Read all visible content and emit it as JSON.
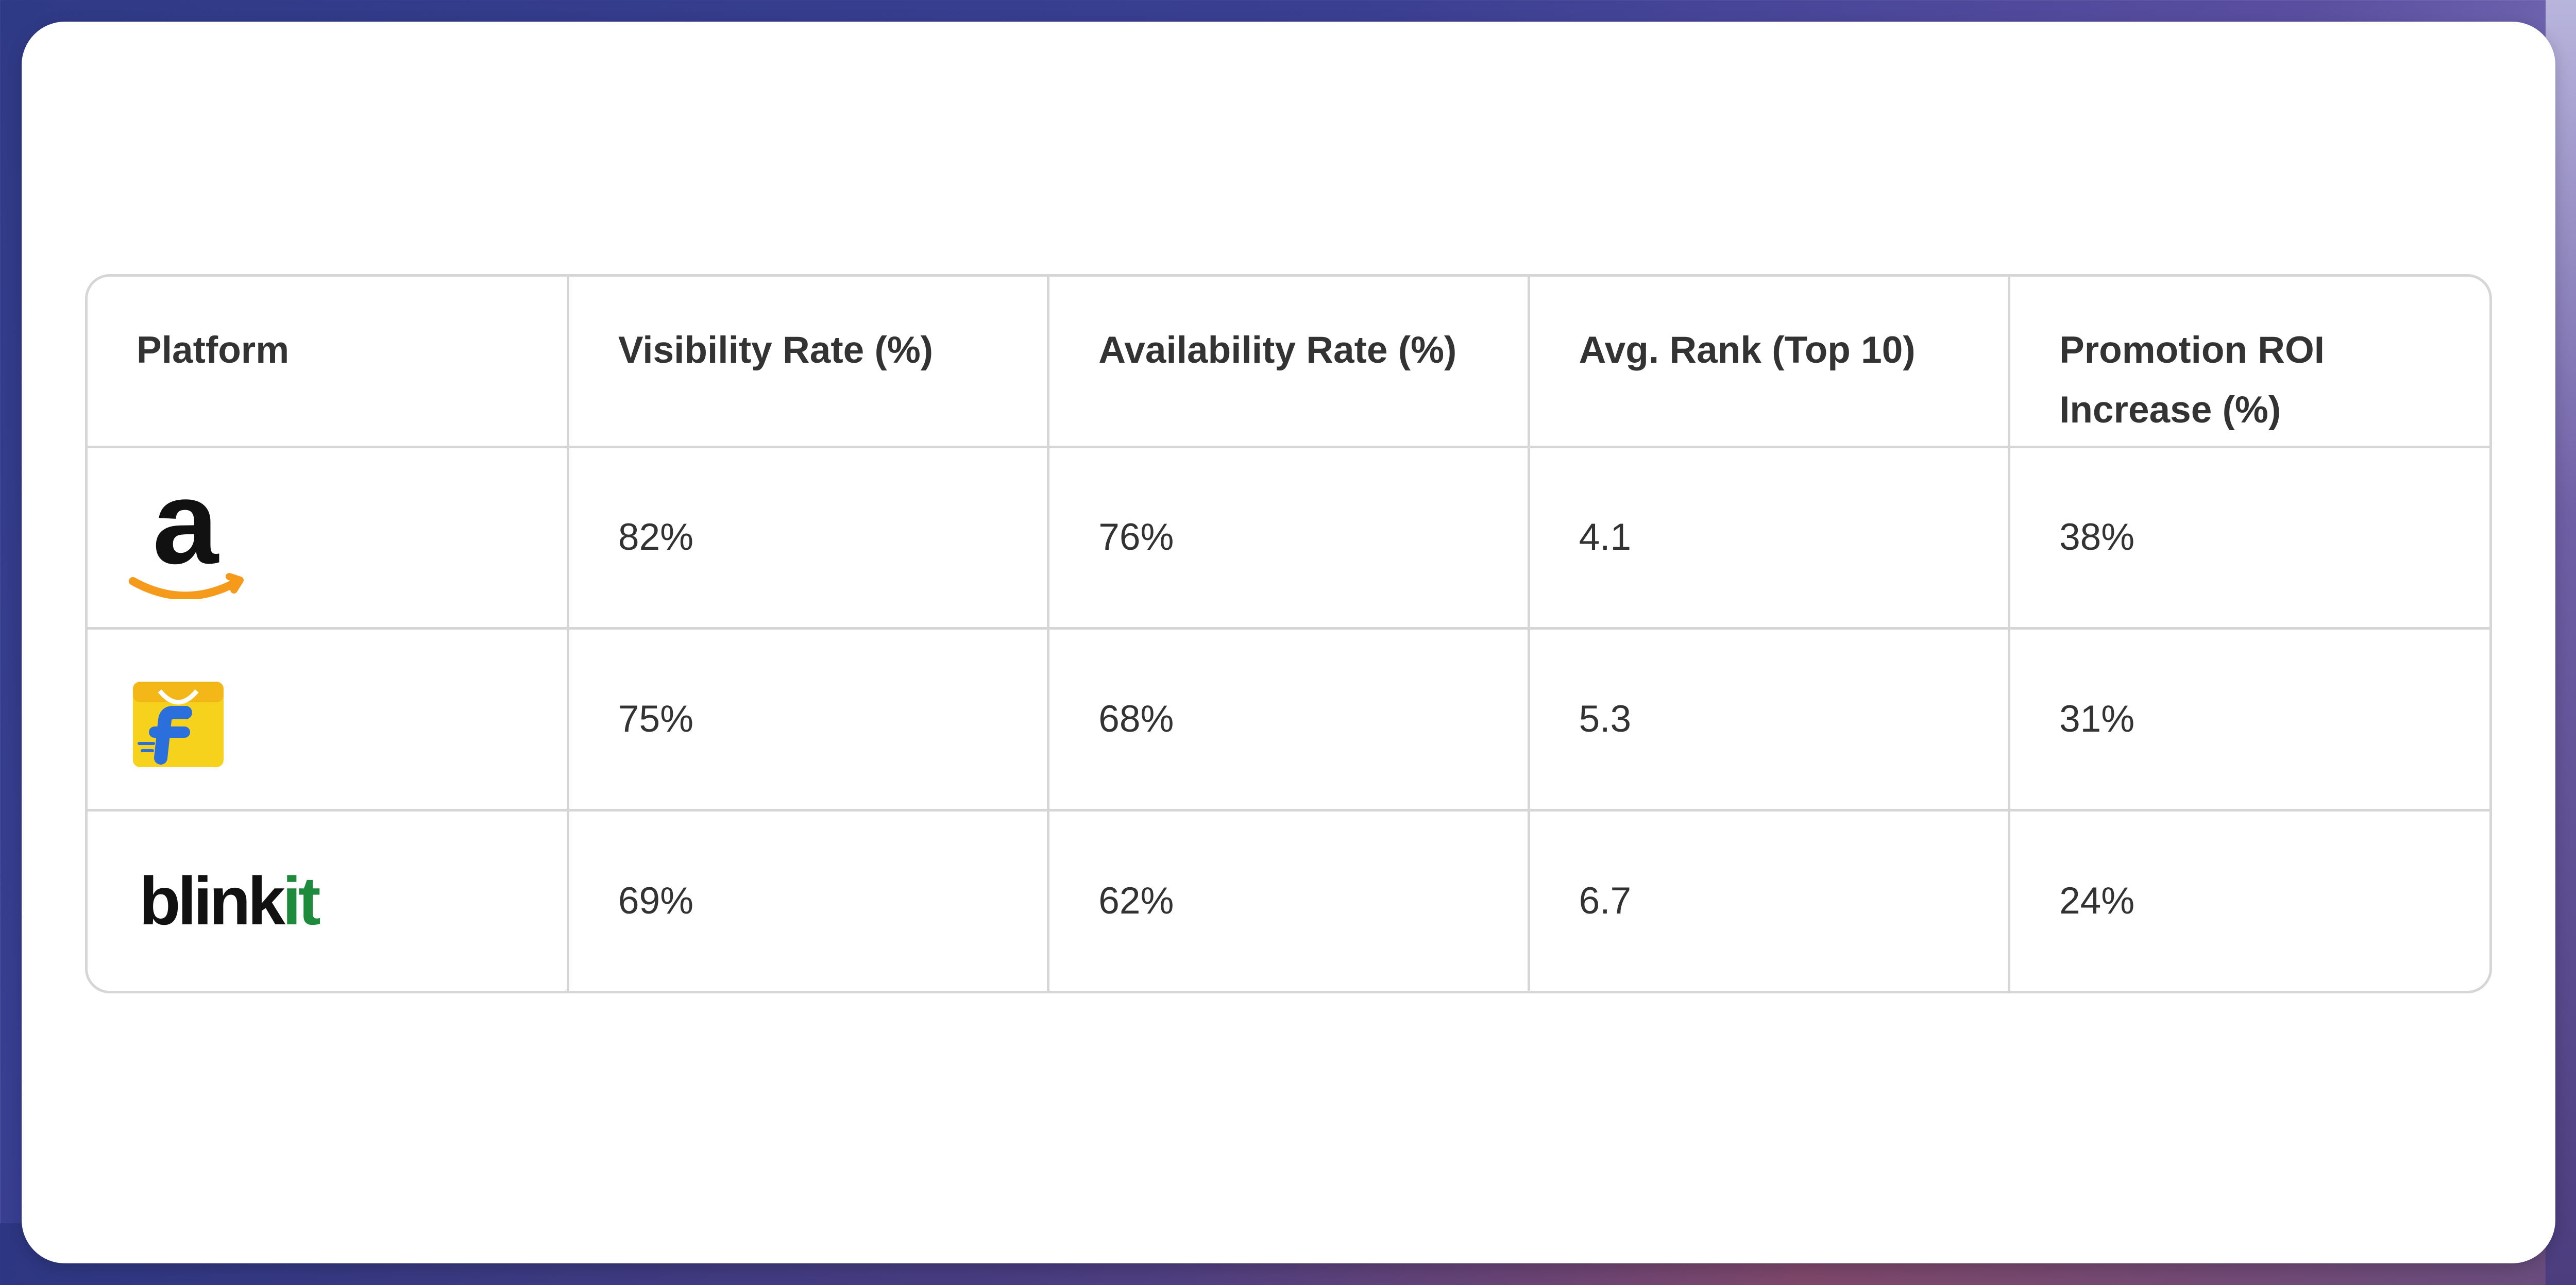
{
  "table": {
    "headers": [
      "Platform",
      "Visibility Rate (%)",
      "Availability Rate (%)",
      "Avg. Rank (Top 10)",
      "Promotion ROI Increase (%)"
    ],
    "rows": [
      {
        "platform_logo": "amazon-logo",
        "visibility": "82%",
        "availability": "76%",
        "avg_rank": "4.1",
        "roi": "38%"
      },
      {
        "platform_logo": "flipkart-logo",
        "visibility": "75%",
        "availability": "68%",
        "avg_rank": "5.3",
        "roi": "31%"
      },
      {
        "platform_logo": "blinkit-logo",
        "logo_text_part1": "blink",
        "logo_text_part2": "it",
        "visibility": "69%",
        "availability": "62%",
        "avg_rank": "6.7",
        "roi": "24%"
      }
    ]
  },
  "colors": {
    "amazon_smile": "#f59a1b",
    "flipkart_bag": "#f7d21d",
    "flipkart_f": "#2a6fdb",
    "blinkit_green": "#1e8a3b",
    "border": "#d6d6d6",
    "text": "#333333"
  }
}
